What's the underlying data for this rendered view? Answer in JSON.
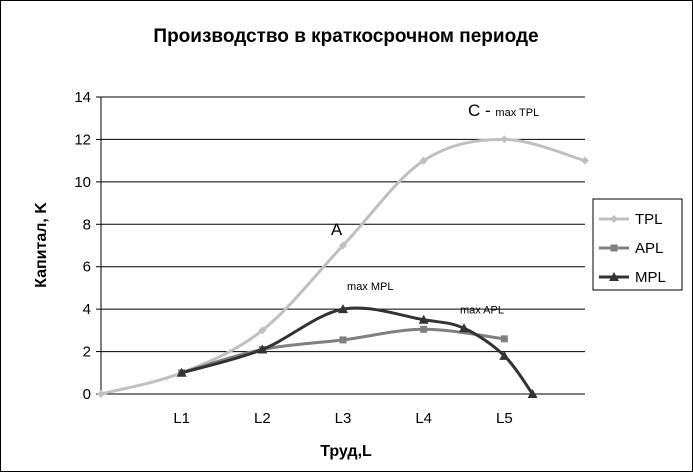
{
  "chart_data": {
    "type": "line",
    "title": "Производство в краткосрочном периоде",
    "xlabel": "Труд,L",
    "ylabel": "Капитал, K",
    "ylim": [
      0,
      14
    ],
    "yticks": [
      0,
      2,
      4,
      6,
      8,
      10,
      12,
      14
    ],
    "xticks": [
      {
        "x": 1,
        "label": "L1"
      },
      {
        "x": 2,
        "label": "L2"
      },
      {
        "x": 3,
        "label": "L3"
      },
      {
        "x": 4,
        "label": "L4"
      },
      {
        "x": 5,
        "label": "L5"
      }
    ],
    "xlim": [
      0,
      6
    ],
    "grid": true,
    "legend_position": "right",
    "series": [
      {
        "name": "TPL",
        "color": "#c0c0c0",
        "marker": "diamond",
        "points": [
          [
            0,
            0
          ],
          [
            1,
            1
          ],
          [
            2,
            3
          ],
          [
            3,
            7
          ],
          [
            4,
            11
          ],
          [
            5,
            12
          ],
          [
            6,
            11
          ]
        ]
      },
      {
        "name": "APL",
        "color": "#808080",
        "marker": "square",
        "points": [
          [
            1,
            1
          ],
          [
            2,
            2.1
          ],
          [
            3,
            2.55
          ],
          [
            4,
            3.05
          ],
          [
            5,
            2.6
          ]
        ]
      },
      {
        "name": "MPL",
        "color": "#333333",
        "marker": "triangle",
        "points": [
          [
            1,
            1
          ],
          [
            2,
            2.1
          ],
          [
            3,
            4
          ],
          [
            4,
            3.5
          ],
          [
            4.5,
            3.1
          ],
          [
            5,
            1.8
          ],
          [
            5.35,
            0
          ]
        ]
      }
    ],
    "annotations": [
      {
        "text": "C - ",
        "sub": "max TPL",
        "x": 4.55,
        "y": 13.1
      },
      {
        "text": "A",
        "x": 2.85,
        "y": 7.5
      },
      {
        "text": "max MPL",
        "x": 3.05,
        "y": 4.9
      },
      {
        "text": "max APL",
        "x": 4.45,
        "y": 3.8
      }
    ]
  }
}
